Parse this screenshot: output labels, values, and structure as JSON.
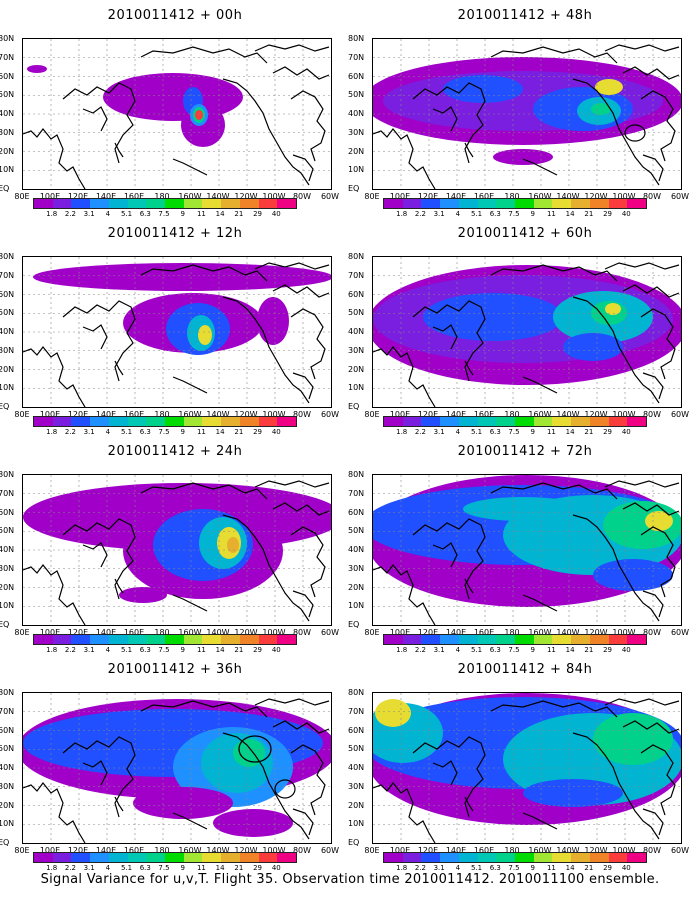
{
  "panels": [
    {
      "title": "2010011412 + 00h"
    },
    {
      "title": "2010011412 + 48h"
    },
    {
      "title": "2010011412 + 12h"
    },
    {
      "title": "2010011412 + 60h"
    },
    {
      "title": "2010011412 + 24h"
    },
    {
      "title": "2010011412 + 72h"
    },
    {
      "title": "2010011412 + 36h"
    },
    {
      "title": "2010011412 + 84h"
    }
  ],
  "lat_labels": [
    "80N",
    "70N",
    "60N",
    "50N",
    "40N",
    "30N",
    "20N",
    "10N",
    "EQ"
  ],
  "lon_labels": [
    "80E",
    "100E",
    "120E",
    "140E",
    "160E",
    "180",
    "160W",
    "140W",
    "120W",
    "100W",
    "80W",
    "60W"
  ],
  "colorbar": {
    "labels": [
      "1.8",
      "2.2",
      "3.1",
      "4",
      "5.1",
      "6.3",
      "7.5",
      "9",
      "11",
      "14",
      "21",
      "29",
      "40"
    ],
    "colors": [
      "#a000c8",
      "#7a1fe0",
      "#2050ff",
      "#1e90ff",
      "#00b4d2",
      "#00c8b4",
      "#00d28c",
      "#00dc00",
      "#a0e632",
      "#e6dc32",
      "#e6af2d",
      "#f08228",
      "#fa3c3c",
      "#f00082"
    ]
  },
  "caption": "Signal Variance for u,v,T. Flight 35. Observation time 2010011412. 2010011100 ensemble."
}
